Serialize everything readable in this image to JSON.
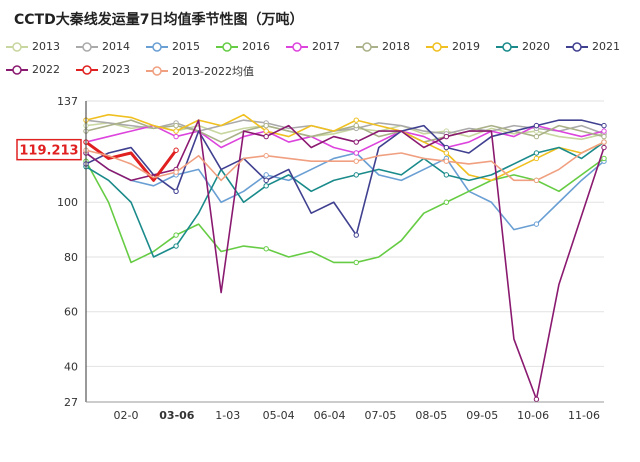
{
  "title": "CCTD大秦线发运量7日均值季节性图（万吨）",
  "legend": [
    {
      "name": "2013",
      "color": "#c8d6a0"
    },
    {
      "name": "2014",
      "color": "#aaaaaa"
    },
    {
      "name": "2015",
      "color": "#6a9fd4"
    },
    {
      "name": "2016",
      "color": "#66cc44"
    },
    {
      "name": "2017",
      "color": "#dd44dd"
    },
    {
      "name": "2018",
      "color": "#aab088"
    },
    {
      "name": "2019",
      "color": "#f0c020"
    },
    {
      "name": "2020",
      "color": "#1a8a8a"
    },
    {
      "name": "2021",
      "color": "#404090"
    },
    {
      "name": "2022",
      "color": "#8a1a70"
    },
    {
      "name": "2023",
      "color": "#e02020"
    },
    {
      "name": "2013-2022均值",
      "color": "#f0a080"
    }
  ],
  "chart_data": {
    "type": "line",
    "title": "CCTD大秦线发运量7日均值季节性图（万吨）",
    "xlabel": "",
    "ylabel": "",
    "x_ticks": [
      "02-0",
      "03-06",
      "1-03",
      "05-04",
      "06-04",
      "07-05",
      "08-05",
      "09-05",
      "10-06",
      "11-06"
    ],
    "highlight_x": "03-06",
    "y_ticks": [
      137,
      100,
      80,
      60,
      40,
      27
    ],
    "ylim": [
      27,
      137
    ],
    "current_value": "119.213",
    "series": [
      {
        "name": "2013",
        "color": "#c8d6a0",
        "values": [
          128,
          129,
          127,
          128,
          126,
          128,
          125,
          127,
          128,
          126,
          124,
          125,
          127,
          126,
          128,
          125,
          126,
          124,
          127,
          125,
          126,
          124,
          123,
          125
        ]
      },
      {
        "name": "2014",
        "color": "#aaaaaa",
        "values": [
          130,
          129,
          128,
          127,
          129,
          126,
          128,
          130,
          129,
          127,
          128,
          126,
          127,
          129,
          128,
          126,
          125,
          127,
          126,
          128,
          127,
          126,
          128,
          125
        ]
      },
      {
        "name": "2015",
        "color": "#6a9fd4",
        "values": [
          118,
          112,
          108,
          106,
          110,
          112,
          100,
          104,
          110,
          108,
          112,
          116,
          118,
          110,
          108,
          112,
          116,
          104,
          100,
          90,
          92,
          100,
          108,
          115
        ]
      },
      {
        "name": "2016",
        "color": "#66cc44",
        "values": [
          115,
          100,
          78,
          82,
          88,
          92,
          82,
          84,
          83,
          80,
          82,
          78,
          78,
          80,
          86,
          96,
          100,
          104,
          108,
          110,
          108,
          104,
          110,
          116
        ]
      },
      {
        "name": "2017",
        "color": "#dd44dd",
        "values": [
          122,
          124,
          126,
          128,
          124,
          126,
          120,
          124,
          126,
          122,
          124,
          120,
          118,
          122,
          126,
          124,
          120,
          122,
          126,
          124,
          128,
          126,
          124,
          126
        ]
      },
      {
        "name": "2018",
        "color": "#aab088",
        "values": [
          126,
          128,
          130,
          127,
          128,
          126,
          122,
          126,
          128,
          126,
          124,
          126,
          128,
          124,
          126,
          122,
          124,
          126,
          128,
          126,
          124,
          128,
          126,
          124
        ]
      },
      {
        "name": "2019",
        "color": "#f0c020",
        "values": [
          130,
          132,
          131,
          128,
          126,
          130,
          128,
          132,
          126,
          124,
          128,
          126,
          130,
          128,
          126,
          122,
          118,
          110,
          108,
          112,
          116,
          120,
          118,
          122
        ]
      },
      {
        "name": "2020",
        "color": "#1a8a8a",
        "values": [
          113,
          108,
          100,
          80,
          84,
          96,
          112,
          100,
          106,
          110,
          104,
          108,
          110,
          112,
          110,
          116,
          110,
          108,
          110,
          114,
          118,
          120,
          116,
          122
        ]
      },
      {
        "name": "2021",
        "color": "#404090",
        "values": [
          114,
          118,
          120,
          110,
          104,
          126,
          112,
          116,
          108,
          112,
          96,
          100,
          88,
          120,
          126,
          128,
          120,
          118,
          124,
          126,
          128,
          130,
          130,
          128
        ]
      },
      {
        "name": "2022",
        "color": "#8a1a70",
        "values": [
          118,
          112,
          108,
          110,
          112,
          130,
          67,
          126,
          124,
          128,
          120,
          124,
          122,
          126,
          126,
          120,
          124,
          126,
          126,
          50,
          28,
          70,
          95,
          120
        ]
      },
      {
        "name": "2023",
        "color": "#e02020",
        "values": [
          122,
          116,
          118,
          108,
          119
        ]
      },
      {
        "name": "2013-2022均值",
        "color": "#f0a080",
        "values": [
          119,
          117,
          114,
          109,
          111,
          117,
          108,
          116,
          117,
          116,
          115,
          115,
          115,
          117,
          118,
          116,
          115,
          114,
          115,
          108,
          108,
          112,
          118,
          122
        ]
      }
    ]
  }
}
